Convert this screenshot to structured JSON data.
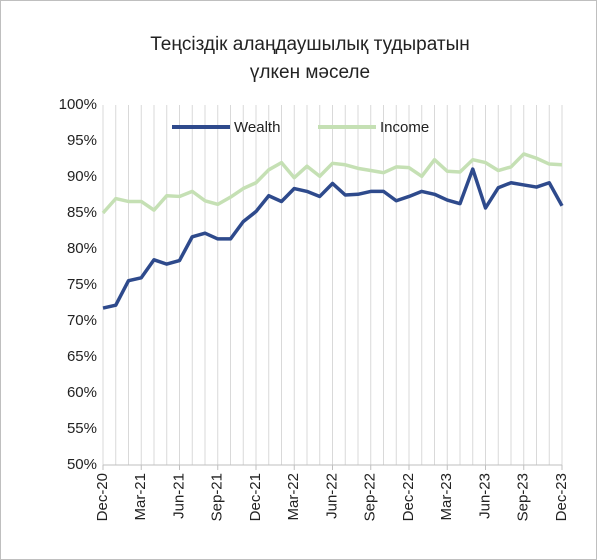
{
  "chart_data": {
    "type": "line",
    "title": [
      "Теңсіздік алаңдаушылық тудыратын",
      "үлкен мәселе"
    ],
    "categories": [
      "Dec-20",
      null,
      null,
      "Mar-21",
      null,
      null,
      "Jun-21",
      null,
      null,
      "Sep-21",
      null,
      null,
      "Dec-21",
      null,
      null,
      "Mar-22",
      null,
      null,
      "Jun-22",
      null,
      null,
      "Sep-22",
      null,
      null,
      "Dec-22",
      null,
      null,
      "Mar-23",
      null,
      null,
      "Jun-23",
      null,
      null,
      "Sep-23",
      null,
      null,
      "Dec-23"
    ],
    "series": [
      {
        "name": "Wealth",
        "color": "#2e4a8c",
        "values": [
          71.8,
          72.2,
          75.6,
          76.0,
          78.5,
          77.9,
          78.4,
          81.7,
          82.2,
          81.4,
          81.4,
          83.8,
          85.2,
          87.4,
          86.6,
          88.4,
          88.0,
          87.3,
          89.1,
          87.5,
          87.6,
          88.0,
          88.0,
          86.7,
          87.3,
          88.0,
          87.6,
          86.8,
          86.3,
          91.1,
          85.7,
          88.5,
          89.2,
          88.9,
          88.6,
          89.2,
          86.0
        ]
      },
      {
        "name": "Income",
        "color": "#c5e0b4",
        "values": [
          85.0,
          87.0,
          86.6,
          86.6,
          85.4,
          87.4,
          87.3,
          88.0,
          86.7,
          86.2,
          87.2,
          88.4,
          89.2,
          91.0,
          92.0,
          89.9,
          91.5,
          90.1,
          91.9,
          91.7,
          91.2,
          90.9,
          90.6,
          91.4,
          91.3,
          90.1,
          92.4,
          90.8,
          90.7,
          92.4,
          92.0,
          90.9,
          91.4,
          93.2,
          92.6,
          91.8,
          91.7
        ]
      }
    ],
    "ylim": [
      50,
      100
    ],
    "yticks": [
      {
        "value": 50,
        "label": "50%"
      },
      {
        "value": 55,
        "label": "55%"
      },
      {
        "value": 60,
        "label": "60%"
      },
      {
        "value": 65,
        "label": "65%"
      },
      {
        "value": 70,
        "label": "70%"
      },
      {
        "value": 75,
        "label": "75%"
      },
      {
        "value": 80,
        "label": "80%"
      },
      {
        "value": 85,
        "label": "85%"
      },
      {
        "value": 90,
        "label": "90%"
      },
      {
        "value": 95,
        "label": "95%"
      },
      {
        "value": 100,
        "label": "100%"
      }
    ],
    "grid": "vertical",
    "legend": "top"
  }
}
